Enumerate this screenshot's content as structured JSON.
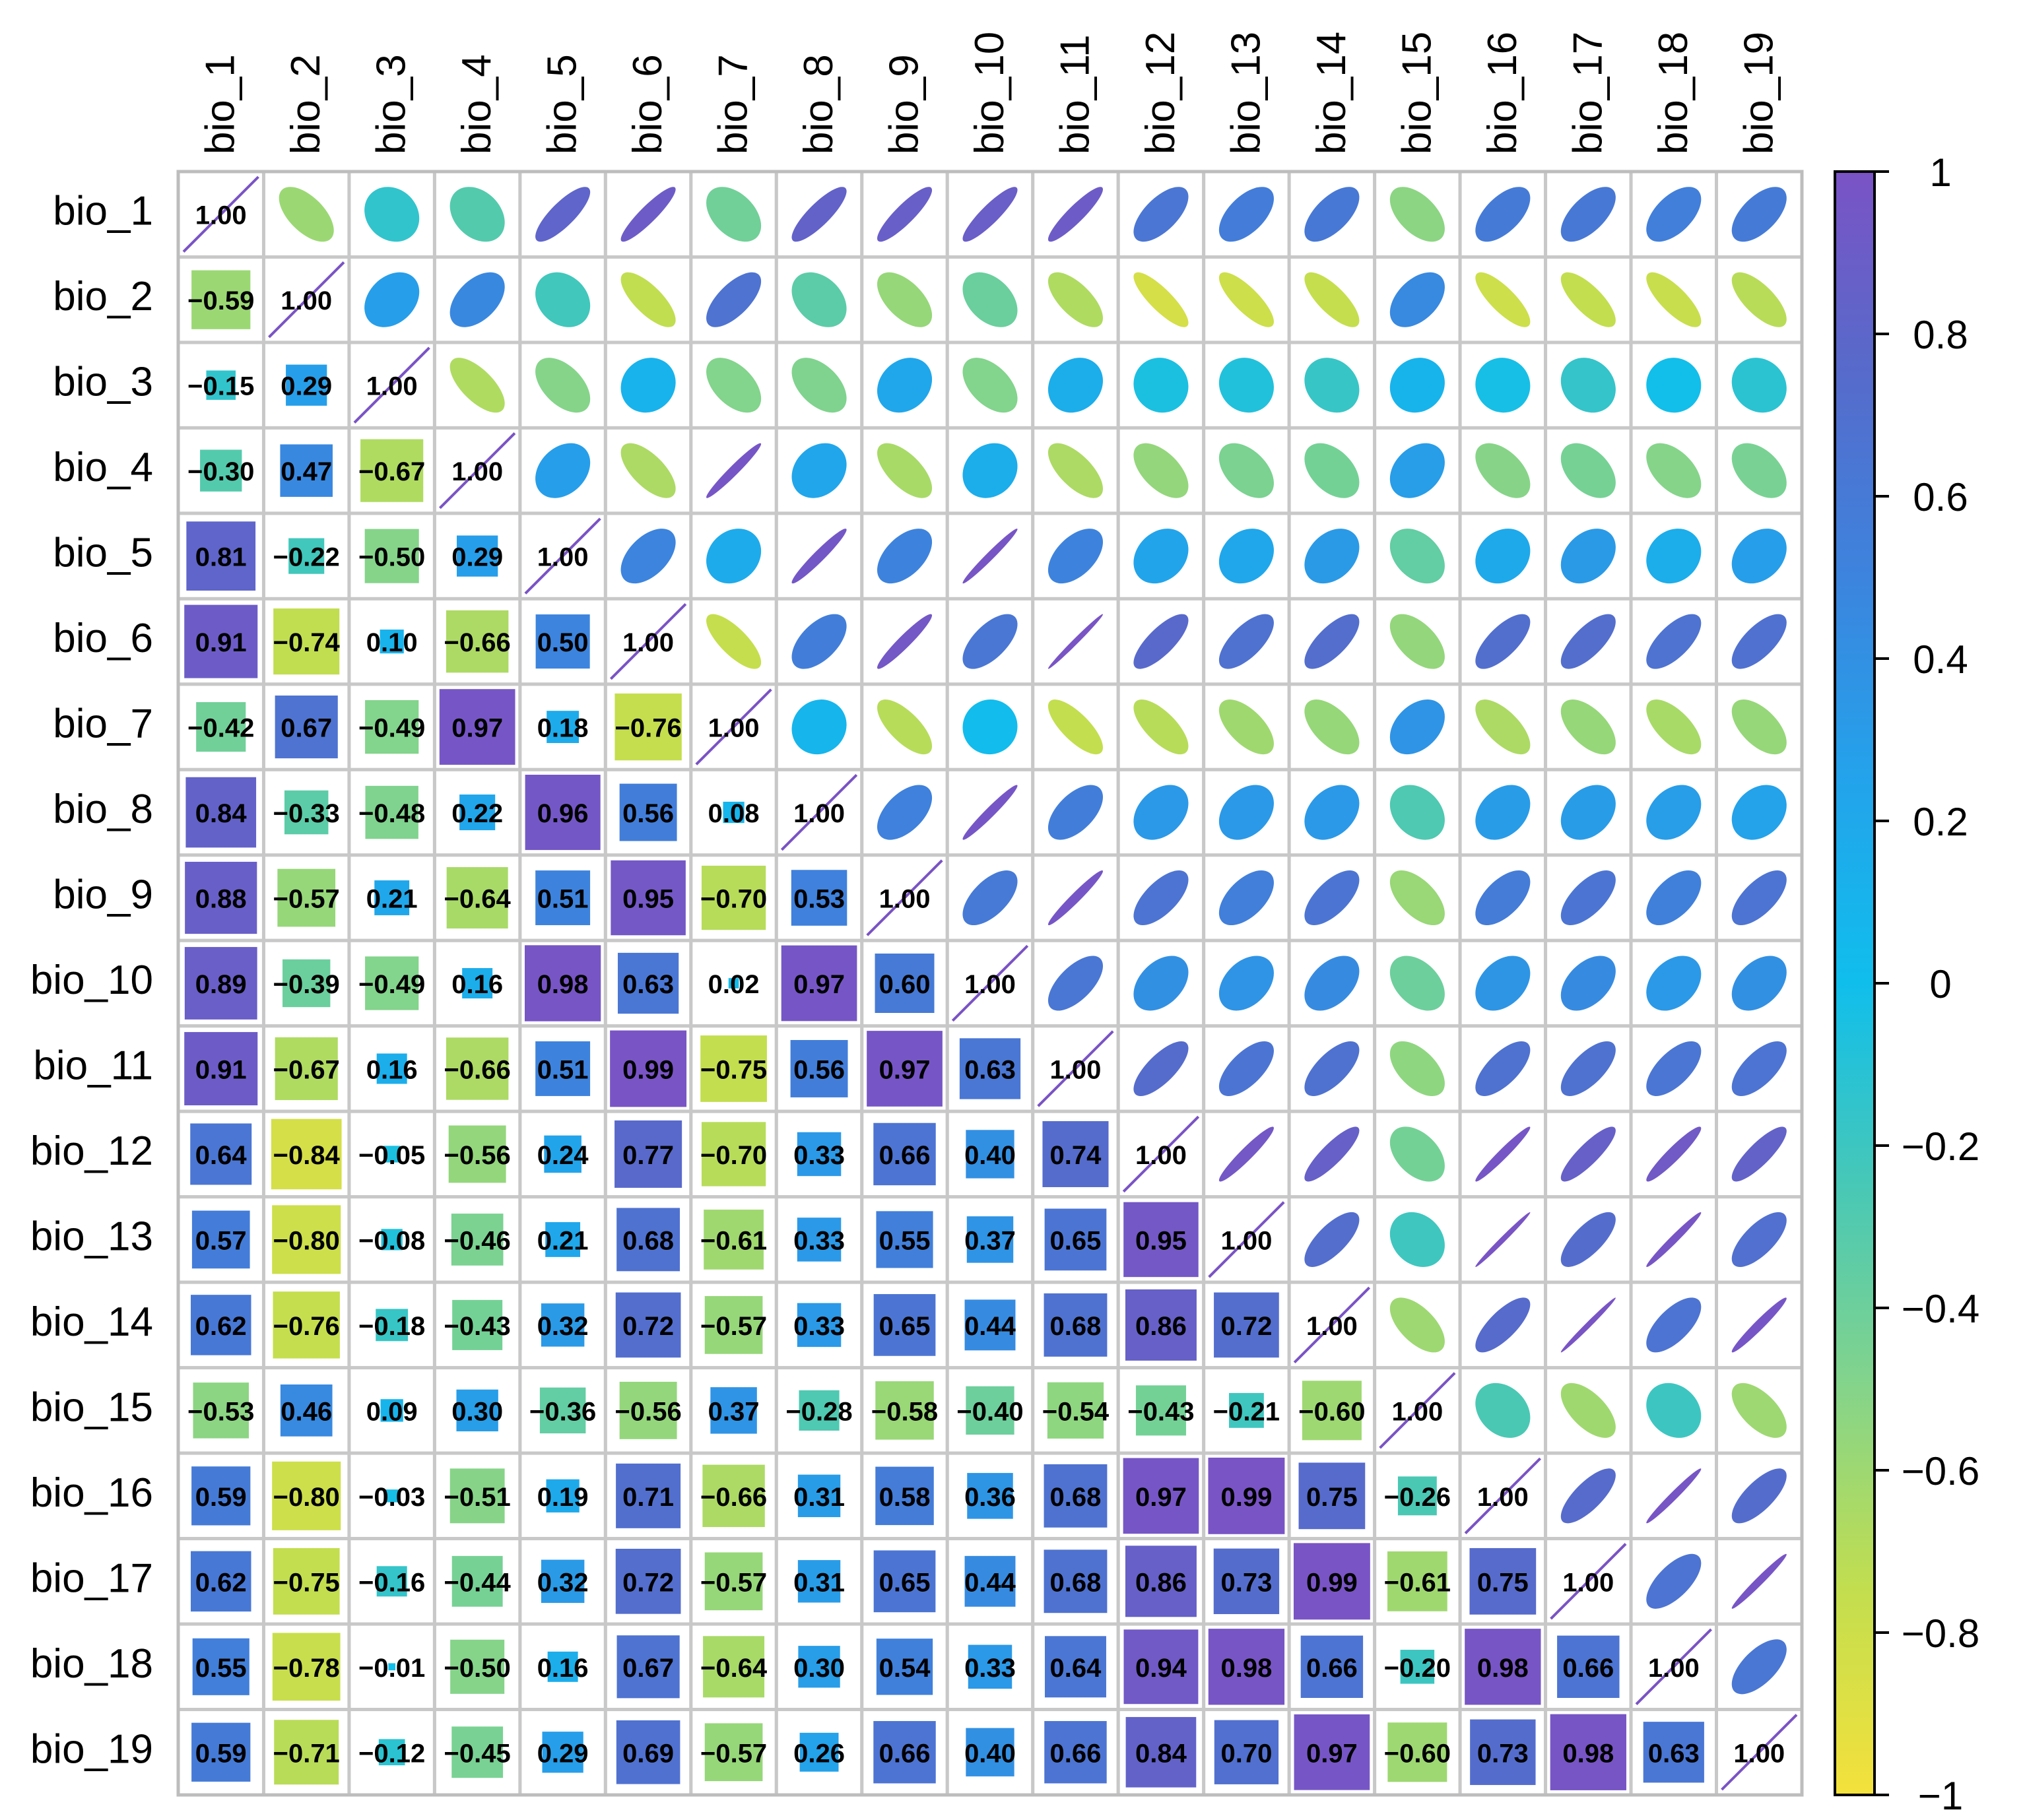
{
  "chart_data": {
    "type": "heatmap",
    "subtype": "correlation-matrix (lower: numbers in squares, upper: ellipses)",
    "variables": [
      "bio_1",
      "bio_2",
      "bio_3",
      "bio_4",
      "bio_5",
      "bio_6",
      "bio_7",
      "bio_8",
      "bio_9",
      "bio_10",
      "bio_11",
      "bio_12",
      "bio_13",
      "bio_14",
      "bio_15",
      "bio_16",
      "bio_17",
      "bio_18",
      "bio_19"
    ],
    "matrix": [
      [
        1.0
      ],
      [
        -0.59,
        1.0
      ],
      [
        -0.15,
        0.29,
        1.0
      ],
      [
        -0.3,
        0.47,
        -0.67,
        1.0
      ],
      [
        0.81,
        -0.22,
        -0.5,
        0.29,
        1.0
      ],
      [
        0.91,
        -0.74,
        0.1,
        -0.66,
        0.5,
        1.0
      ],
      [
        -0.42,
        0.67,
        -0.49,
        0.97,
        0.18,
        -0.76,
        1.0
      ],
      [
        0.84,
        -0.33,
        -0.48,
        0.22,
        0.96,
        0.56,
        0.08,
        1.0
      ],
      [
        0.88,
        -0.57,
        0.21,
        -0.64,
        0.51,
        0.95,
        -0.7,
        0.53,
        1.0
      ],
      [
        0.89,
        -0.39,
        -0.49,
        0.16,
        0.98,
        0.63,
        0.02,
        0.97,
        0.6,
        1.0
      ],
      [
        0.91,
        -0.67,
        0.16,
        -0.66,
        0.51,
        0.99,
        -0.75,
        0.56,
        0.97,
        0.63,
        1.0
      ],
      [
        0.64,
        -0.84,
        -0.05,
        -0.56,
        0.24,
        0.77,
        -0.7,
        0.33,
        0.66,
        0.4,
        0.74,
        1.0
      ],
      [
        0.57,
        -0.8,
        -0.08,
        -0.46,
        0.21,
        0.68,
        -0.61,
        0.33,
        0.55,
        0.37,
        0.65,
        0.95,
        1.0
      ],
      [
        0.62,
        -0.76,
        -0.18,
        -0.43,
        0.32,
        0.72,
        -0.57,
        0.33,
        0.65,
        0.44,
        0.68,
        0.86,
        0.72,
        1.0
      ],
      [
        -0.53,
        0.46,
        0.09,
        0.3,
        -0.36,
        -0.56,
        0.37,
        -0.28,
        -0.58,
        -0.4,
        -0.54,
        -0.43,
        -0.21,
        -0.6,
        1.0
      ],
      [
        0.59,
        -0.8,
        -0.03,
        -0.51,
        0.19,
        0.71,
        -0.66,
        0.31,
        0.58,
        0.36,
        0.68,
        0.97,
        0.99,
        0.75,
        -0.26,
        1.0
      ],
      [
        0.62,
        -0.75,
        -0.16,
        -0.44,
        0.32,
        0.72,
        -0.57,
        0.31,
        0.65,
        0.44,
        0.68,
        0.86,
        0.73,
        0.99,
        -0.61,
        0.75,
        1.0
      ],
      [
        0.55,
        -0.78,
        -0.01,
        -0.5,
        0.16,
        0.67,
        -0.64,
        0.3,
        0.54,
        0.33,
        0.64,
        0.94,
        0.98,
        0.66,
        -0.2,
        0.98,
        0.66,
        1.0
      ],
      [
        0.59,
        -0.71,
        -0.12,
        -0.45,
        0.29,
        0.69,
        -0.57,
        0.26,
        0.66,
        0.4,
        0.66,
        0.84,
        0.7,
        0.97,
        -0.6,
        0.73,
        0.98,
        0.63,
        1.0
      ]
    ],
    "colorbar": {
      "range": [
        -1,
        1
      ],
      "ticks": [
        1,
        0.8,
        0.6,
        0.4,
        0.2,
        0,
        -0.2,
        -0.4,
        -0.6,
        -0.8,
        -1
      ],
      "tick_labels": [
        "1",
        "0.8",
        "0.6",
        "0.4",
        "0.2",
        "0",
        "−0.2",
        "−0.4",
        "−0.6",
        "−0.8",
        "−1"
      ],
      "colors": [
        "#F4E13C",
        "#C3DE4E",
        "#85D48A",
        "#48C8B6",
        "#10BEEC",
        "#23A3EB",
        "#3C84DE",
        "#566BCB",
        "#7A53C5"
      ]
    },
    "title": "",
    "xlabel": "",
    "ylabel": "",
    "legend": "right"
  }
}
